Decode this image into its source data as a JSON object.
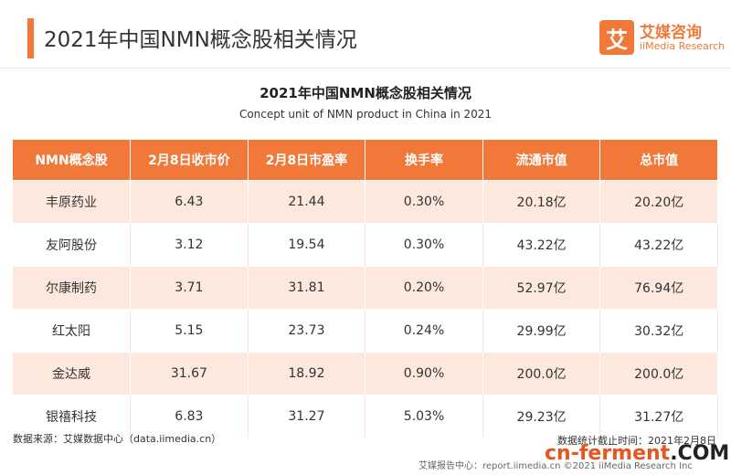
{
  "header": {
    "title": "2021年中国NMN概念股相关情况",
    "logo_icon": "艾",
    "logo_name": "艾媒咨询",
    "logo_en": "iiMedia Research"
  },
  "table": {
    "title": "2021年中国NMN概念股相关情况",
    "subtitle": "Concept unit of NMN product in China in 2021",
    "columns": [
      "NMN概念股",
      "2月8日收市价",
      "2月8日市盈率",
      "换手率",
      "流通市值",
      "总市值"
    ],
    "rows": [
      [
        "丰原药业",
        "6.43",
        "21.44",
        "0.30%",
        "20.18亿",
        "20.20亿"
      ],
      [
        "友阿股份",
        "3.12",
        "19.54",
        "0.30%",
        "43.22亿",
        "43.22亿"
      ],
      [
        "尔康制药",
        "3.71",
        "31.81",
        "0.20%",
        "52.97亿",
        "76.94亿"
      ],
      [
        "红太阳",
        "5.15",
        "23.73",
        "0.24%",
        "29.99亿",
        "30.32亿"
      ],
      [
        "金达威",
        "31.67",
        "18.92",
        "0.90%",
        "200.0亿",
        "200.0亿"
      ],
      [
        "银禧科技",
        "6.83",
        "31.27",
        "5.03%",
        "29.23亿",
        "31.27亿"
      ]
    ]
  },
  "footer": {
    "source": "数据来源：艾媒数据中心（data.iimedia.cn）",
    "date": "数据统计截止时间：2021年2月8日",
    "copyright": "艾媒报告中心：report.iimedia.cn ©2021  iiMedia Research Inc"
  },
  "watermark": {
    "part1": "cn-ferment",
    "part2": ".COM"
  }
}
